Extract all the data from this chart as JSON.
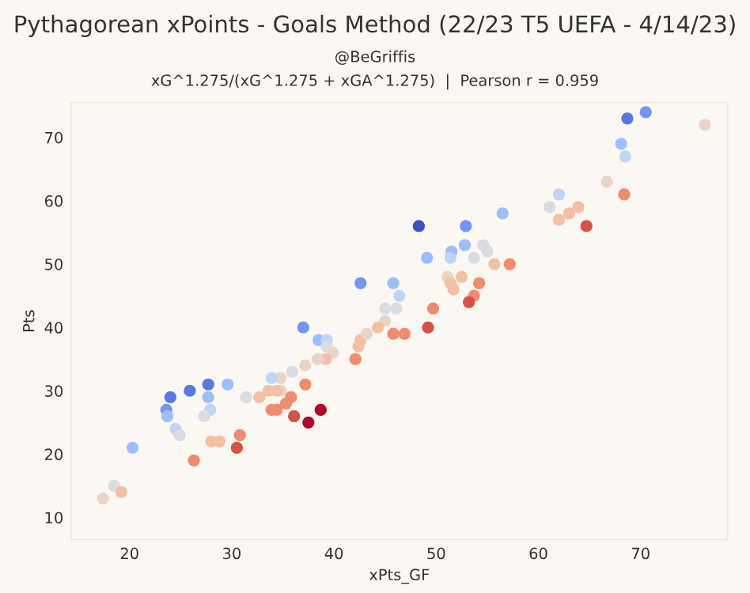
{
  "chart_data": {
    "type": "scatter",
    "title": "Pythagorean xPoints - Goals Method (22/23 T5 UEFA - 4/14/23)",
    "subtitle": "@BeGriffis",
    "annotations": [
      "xG^1.275/(xG^1.275 + xGA^1.275)  |  Pearson r = 0.959"
    ],
    "xlabel": "xPts_GF",
    "ylabel": "Pts",
    "x": [
      70.5,
      68.7,
      76.3,
      68.1,
      68.5,
      66.7,
      68.4,
      62.0,
      61.1,
      63.9,
      63.0,
      62.0,
      64.7,
      48.3,
      52.9,
      56.5,
      49.1,
      51.5,
      51.4,
      52.8,
      54.6,
      55.0,
      53.7,
      55.7,
      57.2,
      51.1,
      52.5,
      51.4,
      51.7,
      54.2,
      53.7,
      53.2,
      49.7,
      49.2,
      45.8,
      46.4,
      45.0,
      46.1,
      45.0,
      42.6,
      37.0,
      38.5,
      39.3,
      39.3,
      39.9,
      39.2,
      38.4,
      37.2,
      35.9,
      34.8,
      33.9,
      37.2,
      35.8,
      34.8,
      34.4,
      33.6,
      32.7,
      31.4,
      35.3,
      34.4,
      33.9,
      36.1,
      37.5,
      38.7,
      42.1,
      42.4,
      42.6,
      43.2,
      44.3,
      45.8,
      46.9,
      24.0,
      25.9,
      27.7,
      29.6,
      27.7,
      23.6,
      23.7,
      27.9,
      27.3,
      24.5,
      24.9,
      20.3,
      28.0,
      28.8,
      30.8,
      30.5,
      26.3,
      18.5,
      19.2,
      17.4
    ],
    "values": [
      74,
      73,
      72,
      69,
      67,
      63,
      61,
      61,
      59,
      59,
      58,
      57,
      56,
      56,
      56,
      58,
      51,
      52,
      51,
      53,
      53,
      52,
      51,
      50,
      50,
      48,
      48,
      47,
      46,
      47,
      45,
      44,
      43,
      40,
      47,
      45,
      43,
      43,
      41,
      47,
      40,
      38,
      38,
      37,
      36,
      35,
      35,
      34,
      33,
      32,
      32,
      31,
      29,
      30,
      30,
      30,
      29,
      29,
      28,
      27,
      27,
      26,
      25,
      27,
      35,
      37,
      38,
      39,
      40,
      39,
      39,
      29,
      30,
      31,
      31,
      29,
      27,
      26,
      27,
      26,
      24,
      23,
      21,
      22,
      22,
      23,
      21,
      19,
      15,
      14,
      13
    ],
    "colors": [
      "#7396f5",
      "#5a78e4",
      "#ead4c8",
      "#9dbdff",
      "#c0d4f5",
      "#ead4c8",
      "#f08b6e",
      "#c0d4f5",
      "#d9dce1",
      "#f3c0a5",
      "#f3c0a5",
      "#f3c0a5",
      "#d65244",
      "#3d50c3",
      "#7396f5",
      "#9dbdff",
      "#9dbdff",
      "#9dbdff",
      "#c0d4f5",
      "#9dbdff",
      "#d9dce1",
      "#d9dce1",
      "#d9dce1",
      "#f3c0a5",
      "#f08b6e",
      "#ead4c8",
      "#f3c0a5",
      "#f3c0a5",
      "#f3c0a5",
      "#f08b6e",
      "#f08b6e",
      "#d65244",
      "#f08b6e",
      "#d65244",
      "#9dbdff",
      "#c0d4f5",
      "#d9dce1",
      "#d9dce1",
      "#ead4c8",
      "#7396f5",
      "#7396f5",
      "#9dbdff",
      "#c0d4f5",
      "#d9dce1",
      "#ead4c8",
      "#f3c0a5",
      "#ead4c8",
      "#ead4c8",
      "#d9dce1",
      "#ead4c8",
      "#c0d4f5",
      "#f08b6e",
      "#f08b6e",
      "#ead4c8",
      "#f3c0a5",
      "#f3c0a5",
      "#f3c0a5",
      "#d9dce1",
      "#f08b6e",
      "#f08b6e",
      "#f08b6e",
      "#d65244",
      "#b40426",
      "#b40426",
      "#f08b6e",
      "#f3c0a5",
      "#f3c0a5",
      "#ead4c8",
      "#f3c0a5",
      "#f08b6e",
      "#f08b6e",
      "#5a78e4",
      "#5a78e4",
      "#5a78e4",
      "#9dbdff",
      "#9dbdff",
      "#7396f5",
      "#9dbdff",
      "#c0d4f5",
      "#d9dce1",
      "#c0d4f5",
      "#d9dce1",
      "#9dbdff",
      "#f3c0a5",
      "#f3c0a5",
      "#f08b6e",
      "#d65244",
      "#f08b6e",
      "#d9dce1",
      "#f3c0a5",
      "#ead4c8"
    ],
    "xlim": [
      14.3,
      78.5
    ],
    "ylim": [
      6.5,
      75.5
    ],
    "xticks": [
      20,
      30,
      40,
      50,
      60,
      70
    ],
    "yticks": [
      10,
      20,
      30,
      40,
      50,
      60,
      70
    ],
    "grid": false,
    "marker": "circle"
  }
}
